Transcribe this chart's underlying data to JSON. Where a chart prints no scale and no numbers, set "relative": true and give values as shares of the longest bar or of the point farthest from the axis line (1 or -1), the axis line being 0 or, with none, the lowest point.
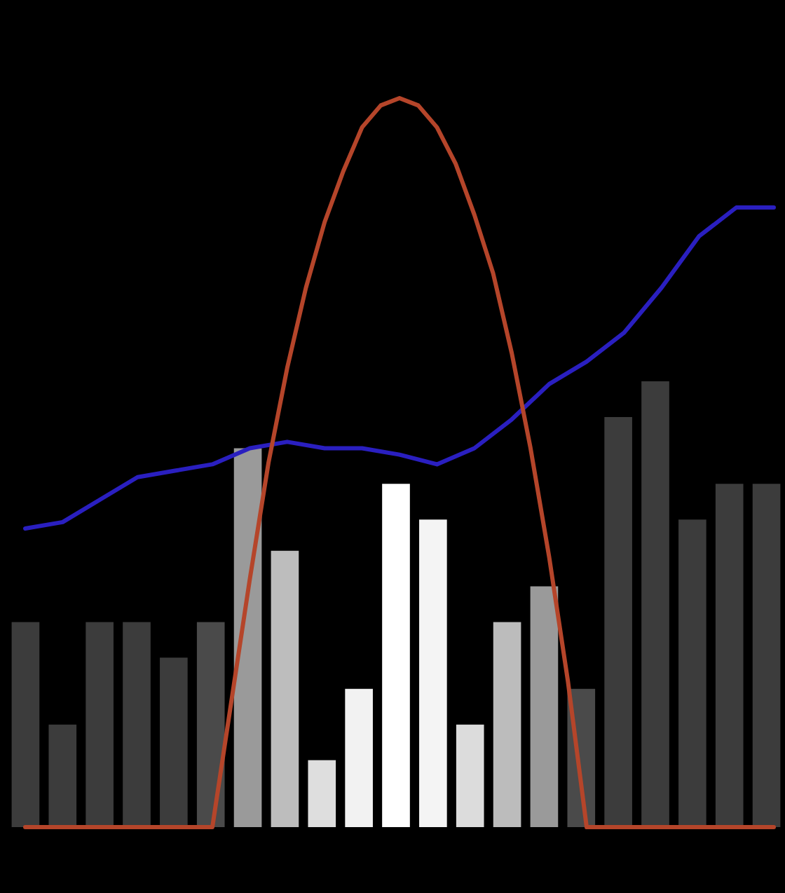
{
  "chart_data": [
    {
      "type": "bar",
      "relative": true,
      "categories": [
        null,
        null,
        null,
        null,
        null,
        null,
        null,
        null,
        null,
        null,
        null,
        null,
        null,
        null,
        null,
        null,
        null,
        null,
        null,
        null,
        null
      ],
      "values": [
        0.46,
        0.23,
        0.46,
        0.46,
        0.38,
        0.46,
        0.85,
        0.62,
        0.15,
        0.31,
        0.77,
        0.69,
        0.23,
        0.46,
        0.54,
        0.31,
        0.92,
        1,
        0.69,
        0.77,
        0.77
      ],
      "colors": [
        "#3c3c3c",
        "#3c3c3c",
        "#3c3c3c",
        "#3c3c3c",
        "#3c3c3c",
        "#4a4a4a",
        "#9a9a9a",
        "#bdbdbd",
        "#dedede",
        "#f2f2f2",
        "#ffffff",
        "#f4f4f4",
        "#dcdcdc",
        "#bcbcbc",
        "#9a9a9a",
        "#4a4a4a",
        "#3c3c3c",
        "#3c3c3c",
        "#3c3c3c",
        "#3c3c3c",
        "#3c3c3c"
      ]
    },
    {
      "type": "line",
      "relative": true,
      "categories": [
        null,
        null,
        null,
        null,
        null,
        null,
        null,
        null,
        null,
        null,
        null,
        null,
        null,
        null,
        null,
        null,
        null,
        null,
        null,
        null,
        null
      ],
      "series": [
        {
          "color": "#2a1fc0",
          "values": [
            0,
            0.02,
            0.09,
            0.16,
            0.18,
            0.2,
            0.25,
            0.27,
            0.25,
            0.25,
            0.23,
            0.2,
            0.25,
            0.34,
            0.45,
            0.52,
            0.61,
            0.75,
            0.91,
            1,
            1
          ]
        }
      ]
    },
    {
      "type": "line",
      "relative": true,
      "categories": [
        null,
        null,
        null,
        null,
        null,
        null,
        null,
        null,
        null,
        null,
        null,
        null,
        null,
        null,
        null,
        null,
        null,
        null,
        null,
        null,
        null,
        null,
        null,
        null,
        null,
        null,
        null,
        null,
        null,
        null,
        null,
        null,
        null,
        null,
        null,
        null,
        null,
        null,
        null,
        null,
        null
      ],
      "series": [
        {
          "color": "#b5452a",
          "values": [
            0,
            0,
            0,
            0,
            0,
            0,
            0,
            0,
            0,
            0,
            0,
            0.17,
            0.34,
            0.5,
            0.63,
            0.74,
            0.83,
            0.9,
            0.96,
            0.99,
            1,
            0.99,
            0.96,
            0.91,
            0.84,
            0.76,
            0.65,
            0.52,
            0.37,
            0.2,
            0,
            0,
            0,
            0,
            0,
            0,
            0,
            0,
            0,
            0,
            0
          ]
        }
      ]
    }
  ]
}
